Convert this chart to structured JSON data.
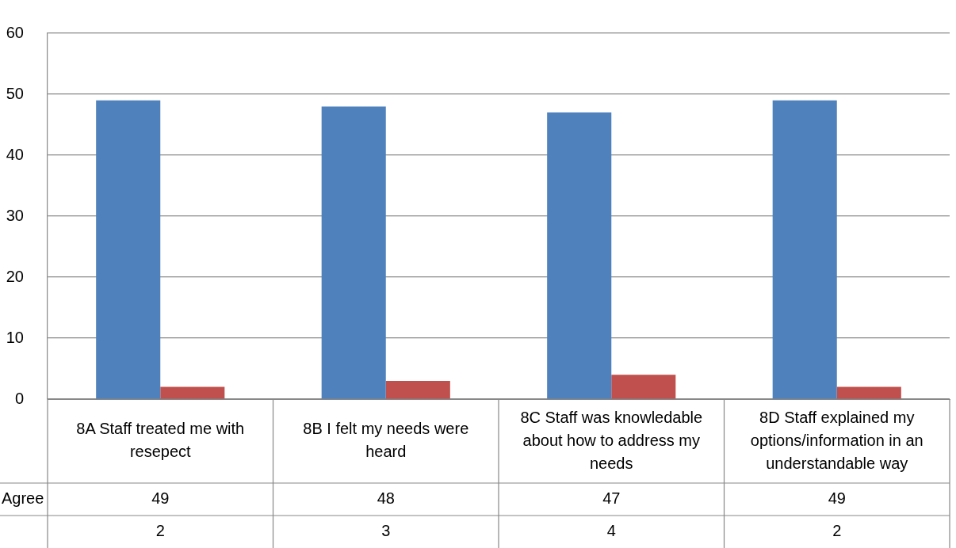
{
  "chart_data": {
    "type": "bar",
    "categories": [
      "8A Staff treated me with resepect",
      "8B I felt my needs were heard",
      "8C Staff was knowledable about how to address my needs",
      "8D Staff explained my options/information in an understandable way"
    ],
    "series": [
      {
        "name": "Agree",
        "color": "#4f81bd",
        "values": [
          49,
          48,
          47,
          49
        ]
      },
      {
        "color": "#c0504d",
        "values": [
          2,
          3,
          4,
          2
        ]
      }
    ],
    "ylim": [
      0,
      60
    ],
    "yticks": [
      0,
      10,
      20,
      30,
      40,
      50,
      60
    ],
    "grid": "y",
    "legend": false,
    "data_labels": true
  }
}
